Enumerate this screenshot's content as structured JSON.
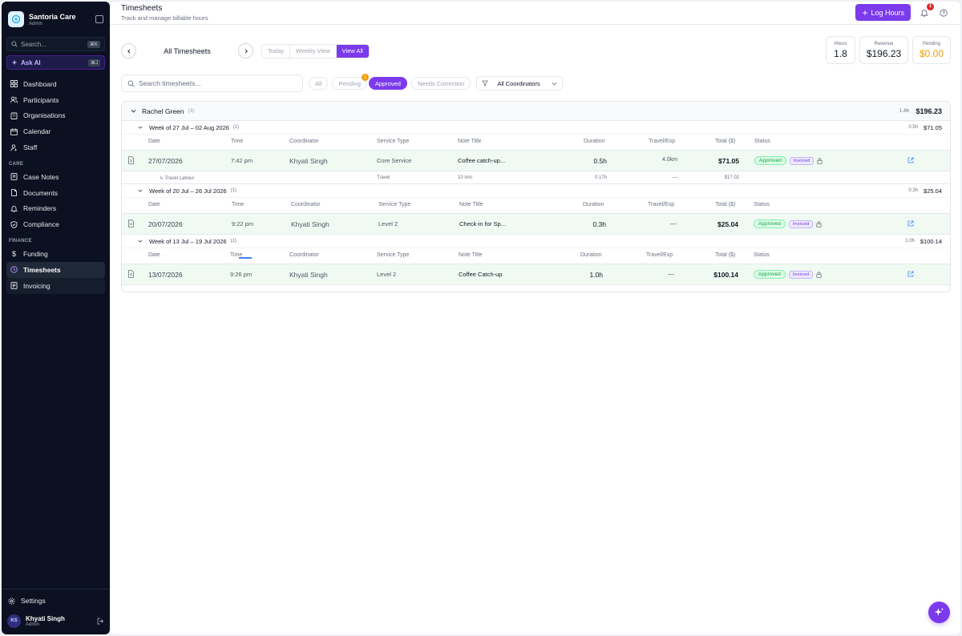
{
  "sidebar": {
    "brand_name": "Santoria Care",
    "brand_role": "Admin",
    "search_label": "Search...",
    "search_kbd": "⌘K",
    "ask_ai_label": "Ask AI",
    "ask_ai_kbd": "⌘J",
    "items_main": [
      {
        "label": "Dashboard",
        "icon": "grid-icon"
      },
      {
        "label": "Participants",
        "icon": "users-icon"
      },
      {
        "label": "Organisations",
        "icon": "building-icon"
      },
      {
        "label": "Calendar",
        "icon": "calendar-icon"
      },
      {
        "label": "Staff",
        "icon": "staff-icon"
      }
    ],
    "section_care": "CARE",
    "items_care": [
      {
        "label": "Case Notes",
        "icon": "notes-icon"
      },
      {
        "label": "Documents",
        "icon": "document-icon"
      },
      {
        "label": "Reminders",
        "icon": "bell-icon"
      },
      {
        "label": "Compliance",
        "icon": "shield-icon"
      }
    ],
    "section_finance": "FINANCE",
    "items_finance": [
      {
        "label": "Funding",
        "icon": "dollar-icon"
      },
      {
        "label": "Timesheets",
        "icon": "clock-icon"
      },
      {
        "label": "Invoicing",
        "icon": "invoice-icon"
      }
    ],
    "settings_label": "Settings",
    "user_initials": "KS",
    "user_name": "Khyati Singh",
    "user_role": "Admin"
  },
  "header": {
    "title": "Timesheets",
    "subtitle": "Track and manage billable hours",
    "log_button": "Log Hours",
    "notif_count": "1"
  },
  "controls": {
    "view_label": "All Timesheets",
    "seg_today": "Today",
    "seg_weekly": "Weekly View",
    "seg_all": "View All"
  },
  "stats": {
    "hours_label": "Hours",
    "hours_value": "1.8",
    "revenue_label": "Revenue",
    "revenue_value": "$196.23",
    "pending_label": "Pending",
    "pending_value": "$0.00"
  },
  "filters": {
    "search_placeholder": "Search timesheets...",
    "chip_all": "All",
    "chip_pending": "Pending",
    "pending_badge": "1",
    "chip_approved": "Approved",
    "chip_needs_correction": "Needs Correction",
    "coordinator_select": "All Coordinators"
  },
  "columns": {
    "date": "Date",
    "time": "Time",
    "coordinator": "Coordinator",
    "service_type": "Service Type",
    "note_title": "Note Title",
    "duration": "Duration",
    "travel": "Travel/Exp",
    "total": "Total ($)",
    "status": "Status"
  },
  "group": {
    "name": "Rachel Green",
    "count": "(3)",
    "hours": "1.8h",
    "total": "$196.23"
  },
  "weeks": [
    {
      "label": "Week of 27 Jul – 02 Aug 2026",
      "count": "(1)",
      "hours": "0.5h",
      "total": "$71.05",
      "entry": {
        "date": "27/07/2026",
        "time": "7:42 pm",
        "coordinator": "Khyati Singh",
        "service": "Core Service",
        "note": "Coffee catch-up...",
        "duration": "0.5h",
        "travel": "4.0km",
        "total": "$71.05",
        "status": "Approved",
        "invoice": "Invoiced"
      },
      "sub": {
        "label": "↳ Travel Labour",
        "service": "Travel",
        "note": "10 min",
        "duration": "0.17h",
        "travel": "—",
        "total": "$17.02"
      }
    },
    {
      "label": "Week of 20 Jul – 26 Jul 2026",
      "count": "(1)",
      "hours": "0.3h",
      "total": "$25.04",
      "entry": {
        "date": "20/07/2026",
        "time": "9:22 pm",
        "coordinator": "Khyati Singh",
        "service": "Level 2",
        "note": "Check-in for Sp...",
        "duration": "0.3h",
        "travel": "—",
        "total": "$25.04",
        "status": "Approved",
        "invoice": "Invoiced"
      }
    },
    {
      "label": "Week of 13 Jul – 19 Jul 2026",
      "count": "(1)",
      "hours": "1.0h",
      "total": "$100.14",
      "entry": {
        "date": "13/07/2026",
        "time": "9:26 pm",
        "coordinator": "Khyati Singh",
        "service": "Level 2",
        "note": "Coffee Catch-up",
        "duration": "1.0h",
        "travel": "—",
        "total": "$100.14",
        "status": "Approved",
        "invoice": "Invoiced"
      }
    }
  ],
  "colors": {
    "accent": "#7c3aed",
    "approved": "#16a34a",
    "pending": "#f59e0b",
    "sidebar_bg": "#0b1120"
  }
}
